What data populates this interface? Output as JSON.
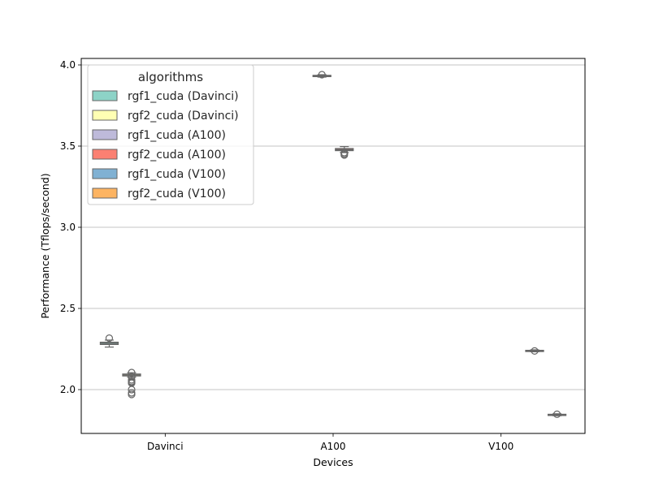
{
  "chart_data": {
    "type": "box",
    "xlabel": "Devices",
    "ylabel": "Performance (Tflops/second)",
    "categories": [
      "Davinci",
      "A100",
      "V100"
    ],
    "ylim": [
      1.73,
      4.04
    ],
    "yticks": [
      "2.0",
      "2.5",
      "3.0",
      "3.5",
      "4.0"
    ],
    "grid": "horizontal",
    "legend": {
      "title": "algorithms",
      "placement": "top-left",
      "entries": [
        {
          "label": "rgf1_cuda (Davinci)",
          "color": "#8dd3c7"
        },
        {
          "label": "rgf2_cuda (Davinci)",
          "color": "#ffffb3"
        },
        {
          "label": "rgf1_cuda (A100)",
          "color": "#bebada"
        },
        {
          "label": "rgf2_cuda (A100)",
          "color": "#fb8072"
        },
        {
          "label": "rgf1_cuda (V100)",
          "color": "#80b1d3"
        },
        {
          "label": "rgf2_cuda (V100)",
          "color": "#fdb462"
        }
      ]
    },
    "series": [
      {
        "name": "rgf1_cuda (Davinci)",
        "category": "Davinci",
        "color": "#8dd3c7",
        "q1": 2.278,
        "median": 2.285,
        "q3": 2.292,
        "whisker_low": 2.262,
        "whisker_high": 2.305,
        "outliers": [
          2.317
        ]
      },
      {
        "name": "rgf2_cuda (Davinci)",
        "category": "Davinci",
        "color": "#ffffb3",
        "q1": 2.084,
        "median": 2.09,
        "q3": 2.096,
        "whisker_low": 2.076,
        "whisker_high": 2.104,
        "outliers": [
          2.105,
          2.08,
          2.06,
          2.05,
          2.045,
          2.04,
          2.0,
          1.98,
          1.97
        ]
      },
      {
        "name": "rgf1_cuda (A100)",
        "category": "A100",
        "color": "#bebada",
        "q1": 3.928,
        "median": 3.932,
        "q3": 3.936,
        "whisker_low": 3.925,
        "whisker_high": 3.94,
        "outliers": [
          3.94
        ]
      },
      {
        "name": "rgf2_cuda (A100)",
        "category": "A100",
        "color": "#fb8072",
        "q1": 3.472,
        "median": 3.478,
        "q3": 3.485,
        "whisker_low": 3.46,
        "whisker_high": 3.497,
        "outliers": [
          3.46,
          3.452,
          3.445
        ]
      },
      {
        "name": "rgf1_cuda (V100)",
        "category": "V100",
        "color": "#80b1d3",
        "q1": 2.236,
        "median": 2.239,
        "q3": 2.242,
        "whisker_low": 2.233,
        "whisker_high": 2.245,
        "outliers": [
          2.238
        ]
      },
      {
        "name": "rgf2_cuda (V100)",
        "category": "V100",
        "color": "#fdb462",
        "q1": 1.842,
        "median": 1.845,
        "q3": 1.848,
        "whisker_low": 1.839,
        "whisker_high": 1.851,
        "outliers": [
          1.848
        ]
      }
    ]
  }
}
